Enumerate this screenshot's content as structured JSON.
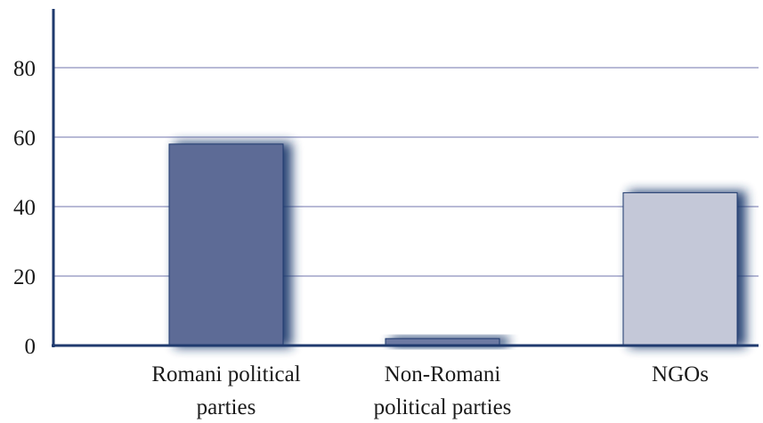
{
  "chart_data": {
    "type": "bar",
    "categories": [
      [
        "Romani political",
        "parties"
      ],
      [
        "Non-Romani",
        "political parties"
      ],
      [
        "NGOs"
      ]
    ],
    "values": [
      58,
      2,
      44
    ],
    "bar_colors": [
      "#5d6b96",
      "#6d7aa3",
      "#c4c8d8"
    ],
    "shadow_color": "#1f3a6e",
    "axis_color": "#1f3a6e",
    "grid_color": "#b8bad6",
    "yticks": [
      0,
      20,
      40,
      60,
      80
    ],
    "ylim": [
      0,
      92
    ],
    "grid": true,
    "title": "",
    "xlabel": "",
    "ylabel": ""
  }
}
